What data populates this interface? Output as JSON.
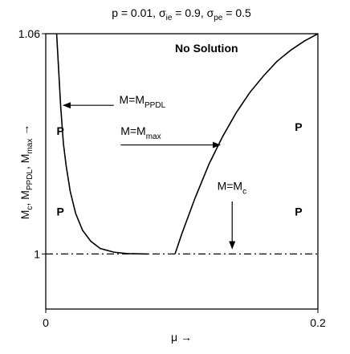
{
  "chart_data": {
    "type": "line",
    "title": {
      "prefix": "p = 0.01, σ",
      "sub1": "ie",
      "mid": " = 0.9, σ",
      "sub2": "pe",
      "suffix": " = 0.5"
    },
    "xlabel": "μ →",
    "ylabel": {
      "part1": "M",
      "sub1": "c",
      "part2": ", M",
      "sub2": "PPDL",
      "part3": ", M",
      "sub3": "max",
      "arrow": " →"
    },
    "xlim": [
      0,
      0.2
    ],
    "ylim": [
      0.985,
      1.06
    ],
    "x_ticks": [
      {
        "value": 0,
        "label": "0"
      },
      {
        "value": 0.2,
        "label": "0.2"
      }
    ],
    "y_ticks": [
      {
        "value": 1,
        "label": "1"
      },
      {
        "value": 1.06,
        "label": "1.06"
      }
    ],
    "grid": false,
    "series": [
      {
        "id": "ppdl",
        "line_style": "solid",
        "color": "#000000",
        "points": [
          [
            0.008,
            1.06
          ],
          [
            0.0095,
            1.05
          ],
          [
            0.011,
            1.04
          ],
          [
            0.013,
            1.03
          ],
          [
            0.015,
            1.024
          ],
          [
            0.018,
            1.017
          ],
          [
            0.022,
            1.011
          ],
          [
            0.027,
            1.0065
          ],
          [
            0.033,
            1.0035
          ],
          [
            0.04,
            1.0015
          ],
          [
            0.05,
            1.0005
          ],
          [
            0.06,
            1.0001
          ],
          [
            0.075,
            1.0
          ]
        ]
      },
      {
        "id": "max",
        "line_style": "solid",
        "color": "#000000",
        "points": [
          [
            0.095,
            1.0
          ],
          [
            0.1,
            1.0055
          ],
          [
            0.11,
            1.0155
          ],
          [
            0.12,
            1.0245
          ],
          [
            0.13,
            1.032
          ],
          [
            0.14,
            1.0385
          ],
          [
            0.15,
            1.044
          ],
          [
            0.16,
            1.0485
          ],
          [
            0.17,
            1.0525
          ],
          [
            0.18,
            1.0555
          ],
          [
            0.19,
            1.058
          ],
          [
            0.2,
            1.06
          ]
        ]
      },
      {
        "id": "c",
        "line_style": "dash-dot",
        "color": "#000000",
        "points": [
          [
            0,
            1.0
          ],
          [
            0.2,
            1.0
          ]
        ]
      }
    ],
    "annotations": [
      {
        "id": "no-solution",
        "text": "No Solution",
        "bold": true,
        "x": 0.095,
        "y": 1.055
      },
      {
        "id": "p-left-upper",
        "text": "P",
        "bold": true,
        "x": 0.008,
        "y": 1.0325
      },
      {
        "id": "p-left-lower",
        "text": "P",
        "bold": true,
        "x": 0.008,
        "y": 1.0105
      },
      {
        "id": "p-right-upper",
        "text": "P",
        "bold": true,
        "x": 0.183,
        "y": 1.0335
      },
      {
        "id": "p-right-lower",
        "text": "P",
        "bold": true,
        "x": 0.183,
        "y": 1.0105
      }
    ],
    "arrow_labels": [
      {
        "id": "ppdl",
        "base": "M=M",
        "sub": "PPDL",
        "text_x": 0.054,
        "text_y": 1.041,
        "arrow_from": [
          0.05,
          1.0405
        ],
        "arrow_to": [
          0.013,
          1.0405
        ]
      },
      {
        "id": "max",
        "base": "M=M",
        "sub": "max",
        "text_x": 0.055,
        "text_y": 1.0325,
        "arrow_from": [
          0.055,
          1.0297
        ],
        "arrow_to": [
          0.128,
          1.0297
        ]
      },
      {
        "id": "c",
        "base": "M=M",
        "sub": "c",
        "text_x": 0.126,
        "text_y": 1.0175,
        "arrow_from": [
          0.137,
          1.0143
        ],
        "arrow_to": [
          0.137,
          1.0015
        ]
      }
    ]
  }
}
